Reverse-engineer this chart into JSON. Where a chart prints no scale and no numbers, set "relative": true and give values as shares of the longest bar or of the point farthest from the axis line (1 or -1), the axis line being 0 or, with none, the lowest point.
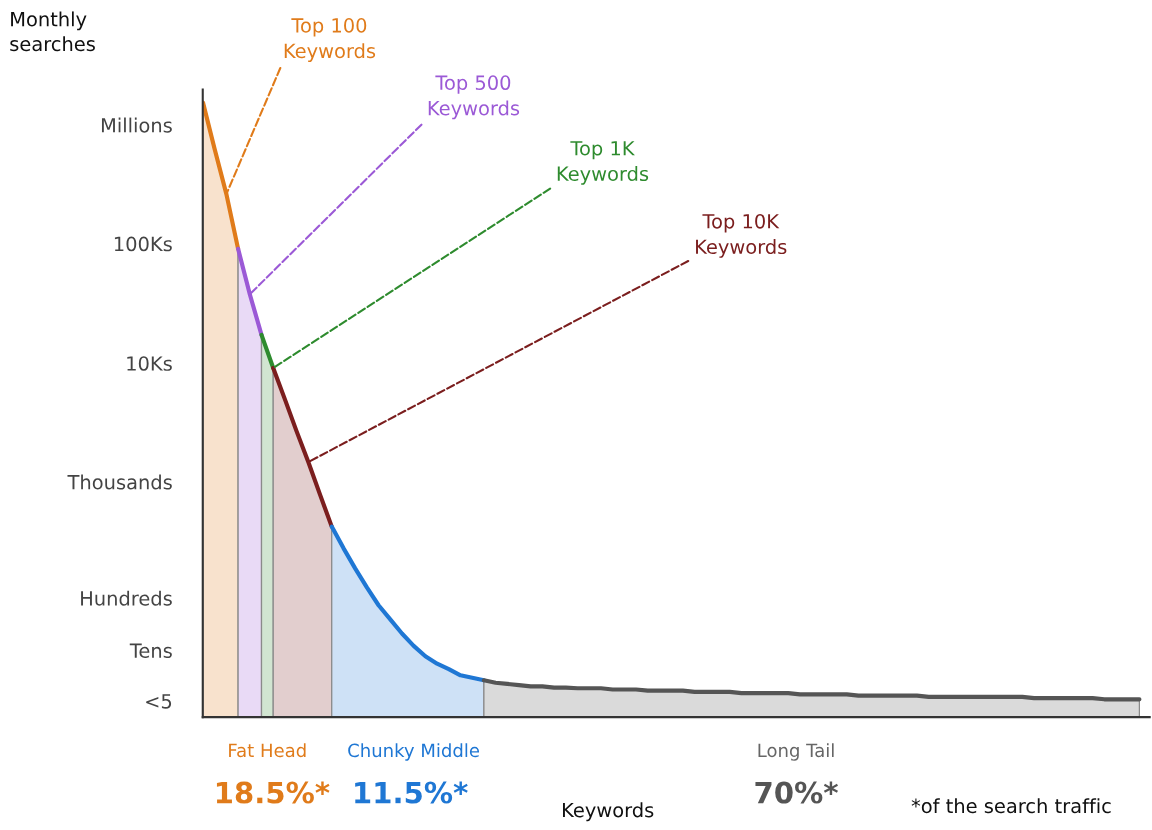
{
  "chart_data": {
    "type": "area",
    "xlabel": "Keywords",
    "relative": true,
    "categories": [
      null,
      null,
      null,
      null,
      null,
      null,
      null,
      null,
      null,
      null,
      null,
      null,
      null,
      null,
      null,
      null,
      null,
      null,
      null,
      null,
      null,
      null,
      null,
      null,
      null,
      null,
      null,
      null,
      null,
      null,
      null,
      null,
      null,
      null,
      null,
      null,
      null,
      null,
      null,
      null,
      null,
      null,
      null,
      null,
      null,
      null,
      null,
      null,
      null,
      null,
      null,
      null,
      null,
      null,
      null,
      null,
      null,
      null,
      null,
      null,
      null,
      null,
      null,
      null,
      null,
      null,
      null,
      null,
      null,
      null,
      null,
      null,
      null,
      null,
      null,
      null,
      null,
      null,
      null,
      null,
      null
    ],
    "grid": false,
    "series": [
      {
        "name": "Top 100 Keywords",
        "color": "#e07b1a",
        "values": [
          1.0,
          0.924,
          0.851,
          0.762,
          null,
          null,
          null,
          null,
          null,
          null,
          null,
          null,
          null,
          null,
          null,
          null,
          null,
          null,
          null,
          null,
          null,
          null,
          null,
          null,
          null,
          null,
          null,
          null,
          null,
          null,
          null,
          null,
          null,
          null,
          null,
          null,
          null,
          null,
          null,
          null,
          null,
          null,
          null,
          null,
          null,
          null,
          null,
          null,
          null,
          null,
          null,
          null,
          null,
          null,
          null,
          null,
          null,
          null,
          null,
          null,
          null,
          null,
          null,
          null,
          null,
          null,
          null,
          null,
          null,
          null,
          null,
          null,
          null,
          null,
          null,
          null,
          null,
          null,
          null,
          null,
          null
        ]
      },
      {
        "name": "Top 500 Keywords",
        "color": "#9b59d6",
        "values": [
          null,
          null,
          null,
          0.762,
          0.688,
          0.622,
          null,
          null,
          null,
          null,
          null,
          null,
          null,
          null,
          null,
          null,
          null,
          null,
          null,
          null,
          null,
          null,
          null,
          null,
          null,
          null,
          null,
          null,
          null,
          null,
          null,
          null,
          null,
          null,
          null,
          null,
          null,
          null,
          null,
          null,
          null,
          null,
          null,
          null,
          null,
          null,
          null,
          null,
          null,
          null,
          null,
          null,
          null,
          null,
          null,
          null,
          null,
          null,
          null,
          null,
          null,
          null,
          null,
          null,
          null,
          null,
          null,
          null,
          null,
          null,
          null,
          null,
          null,
          null,
          null,
          null,
          null,
          null,
          null,
          null,
          null
        ]
      },
      {
        "name": "Top 1K Keywords",
        "color": "#2e8b2e",
        "values": [
          null,
          null,
          null,
          null,
          null,
          0.622,
          0.568,
          null,
          null,
          null,
          null,
          null,
          null,
          null,
          null,
          null,
          null,
          null,
          null,
          null,
          null,
          null,
          null,
          null,
          null,
          null,
          null,
          null,
          null,
          null,
          null,
          null,
          null,
          null,
          null,
          null,
          null,
          null,
          null,
          null,
          null,
          null,
          null,
          null,
          null,
          null,
          null,
          null,
          null,
          null,
          null,
          null,
          null,
          null,
          null,
          null,
          null,
          null,
          null,
          null,
          null,
          null,
          null,
          null,
          null,
          null,
          null,
          null,
          null,
          null,
          null,
          null,
          null,
          null,
          null,
          null,
          null,
          null,
          null,
          null,
          null
        ]
      },
      {
        "name": "Top 10K Keywords",
        "color": "#7b1e1e",
        "values": [
          null,
          null,
          null,
          null,
          null,
          null,
          0.568,
          0.517,
          0.465,
          0.415,
          0.362,
          0.31,
          null,
          null,
          null,
          null,
          null,
          null,
          null,
          null,
          null,
          null,
          null,
          null,
          null,
          null,
          null,
          null,
          null,
          null,
          null,
          null,
          null,
          null,
          null,
          null,
          null,
          null,
          null,
          null,
          null,
          null,
          null,
          null,
          null,
          null,
          null,
          null,
          null,
          null,
          null,
          null,
          null,
          null,
          null,
          null,
          null,
          null,
          null,
          null,
          null,
          null,
          null,
          null,
          null,
          null,
          null,
          null,
          null,
          null,
          null,
          null,
          null,
          null,
          null,
          null,
          null,
          null,
          null,
          null,
          null
        ]
      },
      {
        "color": "#1f77d4",
        "values": [
          null,
          null,
          null,
          null,
          null,
          null,
          null,
          null,
          null,
          null,
          null,
          0.31,
          0.275,
          0.242,
          0.211,
          0.182,
          0.159,
          0.136,
          0.116,
          0.099,
          0.087,
          0.078,
          0.068,
          0.064,
          0.06,
          null,
          null,
          null,
          null,
          null,
          null,
          null,
          null,
          null,
          null,
          null,
          null,
          null,
          null,
          null,
          null,
          null,
          null,
          null,
          null,
          null,
          null,
          null,
          null,
          null,
          null,
          null,
          null,
          null,
          null,
          null,
          null,
          null,
          null,
          null,
          null,
          null,
          null,
          null,
          null,
          null,
          null,
          null,
          null,
          null,
          null,
          null,
          null,
          null,
          null,
          null,
          null,
          null,
          null,
          null,
          null
        ]
      },
      {
        "color": "#555555",
        "values": [
          null,
          null,
          null,
          null,
          null,
          null,
          null,
          null,
          null,
          null,
          null,
          null,
          null,
          null,
          null,
          null,
          null,
          null,
          null,
          null,
          null,
          null,
          null,
          null,
          0.06,
          0.056,
          0.054,
          0.052,
          0.05,
          0.05,
          0.048,
          0.048,
          0.047,
          0.047,
          0.047,
          0.045,
          0.045,
          0.045,
          0.043,
          0.043,
          0.043,
          0.043,
          0.041,
          0.041,
          0.041,
          0.041,
          0.039,
          0.039,
          0.039,
          0.039,
          0.039,
          0.037,
          0.037,
          0.037,
          0.037,
          0.037,
          0.035,
          0.035,
          0.035,
          0.035,
          0.035,
          0.035,
          0.033,
          0.033,
          0.033,
          0.033,
          0.033,
          0.033,
          0.033,
          0.033,
          0.033,
          0.031,
          0.031,
          0.031,
          0.031,
          0.031,
          0.031,
          0.029,
          0.029,
          0.029,
          0.029
        ]
      }
    ],
    "annotations": [
      "Millions",
      "100Ks",
      "10Ks",
      "Thousands",
      "Hundreds",
      "Tens",
      "<5",
      "Fat Head",
      "18.5%*",
      "Chunky Middle",
      "11.5%*",
      "Long Tail",
      "70%*",
      "*of the search traffic",
      "Monthly searches"
    ]
  }
}
